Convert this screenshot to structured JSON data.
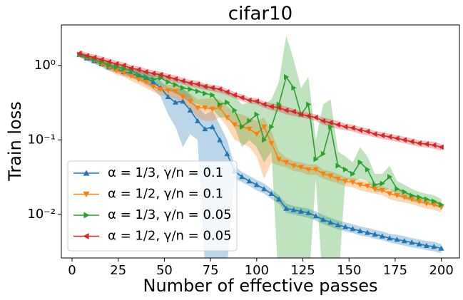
{
  "chart_data": {
    "type": "line",
    "title": "cifar10",
    "xlabel": "Number of effective passes",
    "ylabel": "Train loss",
    "yscale": "log",
    "legend": "lower left",
    "xlim": [
      -5.8,
      209.8
    ],
    "xticks": [
      0,
      25,
      50,
      75,
      100,
      125,
      150,
      175,
      200
    ],
    "ylim": [
      0.0026,
      3.5
    ],
    "yticks": [
      {
        "value": 1,
        "label": "10⁰"
      },
      {
        "value": 0.1,
        "label": "10⁻¹"
      },
      {
        "value": 0.01,
        "label": "10⁻²"
      }
    ],
    "x": [
      4,
      8,
      12,
      16,
      20,
      24,
      28,
      32,
      36,
      40,
      44,
      48,
      52,
      56,
      60,
      64,
      68,
      72,
      76,
      80,
      84,
      88,
      92,
      96,
      100,
      104,
      108,
      112,
      116,
      120,
      124,
      128,
      132,
      136,
      140,
      144,
      148,
      152,
      156,
      160,
      164,
      168,
      172,
      176,
      180,
      184,
      188,
      192,
      196,
      200
    ],
    "series": [
      {
        "name": "α = 1/3, γ/n = 0.1",
        "color": "#1f77b4",
        "marker": "up",
        "values": [
          1.4,
          1.25,
          1.15,
          1.05,
          0.95,
          0.9,
          0.82,
          0.78,
          0.72,
          0.68,
          0.6,
          0.5,
          0.38,
          0.32,
          0.33,
          0.25,
          0.18,
          0.14,
          0.15,
          0.1,
          0.065,
          0.038,
          0.032,
          0.028,
          0.025,
          0.022,
          0.019,
          0.016,
          0.012,
          0.0115,
          0.011,
          0.0105,
          0.0095,
          0.0085,
          0.0078,
          0.0072,
          0.0068,
          0.0064,
          0.006,
          0.0057,
          0.0054,
          0.0051,
          0.0048,
          0.0046,
          0.0044,
          0.0042,
          0.004,
          0.0038,
          0.0037,
          0.0035
        ],
        "lower": [
          1.3,
          1.15,
          1.05,
          0.95,
          0.85,
          0.8,
          0.72,
          0.68,
          0.62,
          0.55,
          0.48,
          0.38,
          0.22,
          0.15,
          0.08,
          0.12,
          0.1,
          0.002,
          0.002,
          0.002,
          0.002,
          0.03,
          0.027,
          0.024,
          0.021,
          0.019,
          0.016,
          0.014,
          0.0105,
          0.01,
          0.0095,
          0.009,
          0.0082,
          0.0074,
          0.0068,
          0.0063,
          0.0059,
          0.0056,
          0.0052,
          0.005,
          0.0047,
          0.0045,
          0.0042,
          0.004,
          0.0038,
          0.0036,
          0.0035,
          0.0033,
          0.0032,
          0.003
        ],
        "upper": [
          1.55,
          1.4,
          1.3,
          1.2,
          1.1,
          1.02,
          0.95,
          0.9,
          0.85,
          0.8,
          0.72,
          0.62,
          0.5,
          0.48,
          0.5,
          0.4,
          0.28,
          0.22,
          0.25,
          0.16,
          0.1,
          0.045,
          0.037,
          0.033,
          0.029,
          0.026,
          0.022,
          0.018,
          0.014,
          0.013,
          0.0125,
          0.012,
          0.011,
          0.0098,
          0.009,
          0.0083,
          0.0078,
          0.0074,
          0.0069,
          0.0066,
          0.0062,
          0.0059,
          0.0055,
          0.0053,
          0.0051,
          0.0048,
          0.0046,
          0.0044,
          0.0043,
          0.004
        ]
      },
      {
        "name": "α = 1/2, γ/n = 0.1",
        "color": "#ff7f0e",
        "marker": "down",
        "values": [
          1.4,
          1.28,
          1.18,
          1.05,
          0.95,
          0.85,
          0.8,
          0.72,
          0.65,
          0.6,
          0.52,
          0.48,
          0.46,
          0.45,
          0.38,
          0.33,
          0.27,
          0.27,
          0.26,
          0.27,
          0.2,
          0.16,
          0.15,
          0.14,
          0.12,
          0.15,
          0.09,
          0.055,
          0.05,
          0.045,
          0.043,
          0.04,
          0.04,
          0.035,
          0.033,
          0.03,
          0.028,
          0.027,
          0.025,
          0.024,
          0.022,
          0.021,
          0.019,
          0.018,
          0.017,
          0.016,
          0.015,
          0.014,
          0.0135,
          0.0125
        ],
        "lower": [
          1.3,
          1.18,
          1.08,
          0.95,
          0.85,
          0.75,
          0.7,
          0.62,
          0.56,
          0.5,
          0.44,
          0.4,
          0.38,
          0.36,
          0.3,
          0.26,
          0.2,
          0.18,
          0.18,
          0.2,
          0.15,
          0.1,
          0.09,
          0.08,
          0.06,
          0.03,
          0.05,
          0.045,
          0.043,
          0.038,
          0.037,
          0.034,
          0.034,
          0.03,
          0.028,
          0.026,
          0.024,
          0.023,
          0.021,
          0.02,
          0.019,
          0.018,
          0.016,
          0.015,
          0.0145,
          0.0137,
          0.0128,
          0.012,
          0.0115,
          0.0107
        ],
        "upper": [
          1.5,
          1.38,
          1.28,
          1.15,
          1.05,
          0.95,
          0.9,
          0.82,
          0.75,
          0.7,
          0.6,
          0.56,
          0.55,
          0.55,
          0.48,
          0.42,
          0.35,
          0.36,
          0.36,
          0.35,
          0.28,
          0.23,
          0.22,
          0.2,
          0.18,
          0.2,
          0.13,
          0.07,
          0.058,
          0.052,
          0.05,
          0.047,
          0.047,
          0.04,
          0.038,
          0.035,
          0.032,
          0.031,
          0.029,
          0.028,
          0.025,
          0.024,
          0.022,
          0.021,
          0.02,
          0.0185,
          0.0173,
          0.016,
          0.0155,
          0.0145
        ]
      },
      {
        "name": "α = 1/3, γ/n = 0.05",
        "color": "#2ca02c",
        "marker": "right",
        "values": [
          1.4,
          1.3,
          1.2,
          1.1,
          1.0,
          0.95,
          0.9,
          0.85,
          0.75,
          0.7,
          0.65,
          0.68,
          0.6,
          0.55,
          0.5,
          0.48,
          0.45,
          0.42,
          0.4,
          0.3,
          0.32,
          0.25,
          0.15,
          0.18,
          0.22,
          0.1,
          0.15,
          0.3,
          0.7,
          0.5,
          0.22,
          0.3,
          0.055,
          0.065,
          0.15,
          0.045,
          0.04,
          0.035,
          0.05,
          0.04,
          0.025,
          0.026,
          0.032,
          0.022,
          0.02,
          0.018,
          0.017,
          0.016,
          0.015,
          0.0135
        ],
        "lower": [
          1.3,
          1.2,
          1.1,
          1.0,
          0.9,
          0.85,
          0.8,
          0.75,
          0.65,
          0.6,
          0.55,
          0.55,
          0.48,
          0.42,
          0.38,
          0.35,
          0.3,
          0.28,
          0.26,
          0.2,
          0.2,
          0.15,
          0.08,
          0.1,
          0.08,
          0.05,
          0.07,
          0.001,
          0.001,
          0.001,
          0.001,
          0.001,
          0.03,
          0.001,
          0.001,
          0.001,
          0.03,
          0.028,
          0.03,
          0.028,
          0.02,
          0.02,
          0.022,
          0.018,
          0.016,
          0.015,
          0.014,
          0.014,
          0.013,
          0.012
        ],
        "upper": [
          1.5,
          1.4,
          1.3,
          1.2,
          1.1,
          1.05,
          1.0,
          0.95,
          0.85,
          0.82,
          0.77,
          0.8,
          0.72,
          0.68,
          0.62,
          0.6,
          0.58,
          0.55,
          0.52,
          0.45,
          0.45,
          0.38,
          0.3,
          0.32,
          0.35,
          0.3,
          0.35,
          0.6,
          2.5,
          1.2,
          0.5,
          0.7,
          0.1,
          0.3,
          0.35,
          0.07,
          0.06,
          0.05,
          0.08,
          0.06,
          0.035,
          0.035,
          0.045,
          0.028,
          0.025,
          0.022,
          0.02,
          0.019,
          0.018,
          0.016
        ]
      },
      {
        "name": "α = 1/2, γ/n = 0.05",
        "color": "#d62728",
        "marker": "left",
        "values": [
          1.45,
          1.35,
          1.28,
          1.2,
          1.12,
          1.05,
          1.0,
          0.92,
          0.88,
          0.82,
          0.78,
          0.75,
          0.7,
          0.66,
          0.62,
          0.58,
          0.56,
          0.52,
          0.5,
          0.48,
          0.44,
          0.4,
          0.37,
          0.34,
          0.33,
          0.3,
          0.28,
          0.27,
          0.25,
          0.24,
          0.22,
          0.21,
          0.2,
          0.18,
          0.17,
          0.16,
          0.15,
          0.145,
          0.135,
          0.13,
          0.12,
          0.115,
          0.11,
          0.105,
          0.1,
          0.095,
          0.09,
          0.088,
          0.085,
          0.08
        ],
        "lower": [
          1.3,
          1.22,
          1.15,
          1.08,
          1.0,
          0.95,
          0.9,
          0.83,
          0.79,
          0.74,
          0.7,
          0.68,
          0.63,
          0.59,
          0.56,
          0.52,
          0.5,
          0.47,
          0.45,
          0.43,
          0.4,
          0.36,
          0.33,
          0.31,
          0.3,
          0.27,
          0.25,
          0.24,
          0.22,
          0.21,
          0.2,
          0.19,
          0.18,
          0.16,
          0.15,
          0.14,
          0.135,
          0.13,
          0.12,
          0.115,
          0.108,
          0.103,
          0.099,
          0.094,
          0.09,
          0.085,
          0.081,
          0.079,
          0.076,
          0.072
        ],
        "upper": [
          1.6,
          1.48,
          1.4,
          1.32,
          1.23,
          1.15,
          1.1,
          1.01,
          0.97,
          0.9,
          0.86,
          0.82,
          0.77,
          0.73,
          0.68,
          0.64,
          0.62,
          0.57,
          0.55,
          0.53,
          0.48,
          0.44,
          0.41,
          0.37,
          0.36,
          0.33,
          0.31,
          0.3,
          0.28,
          0.26,
          0.24,
          0.23,
          0.22,
          0.2,
          0.19,
          0.18,
          0.165,
          0.16,
          0.15,
          0.143,
          0.132,
          0.127,
          0.121,
          0.116,
          0.11,
          0.105,
          0.099,
          0.097,
          0.094,
          0.088
        ]
      }
    ]
  }
}
